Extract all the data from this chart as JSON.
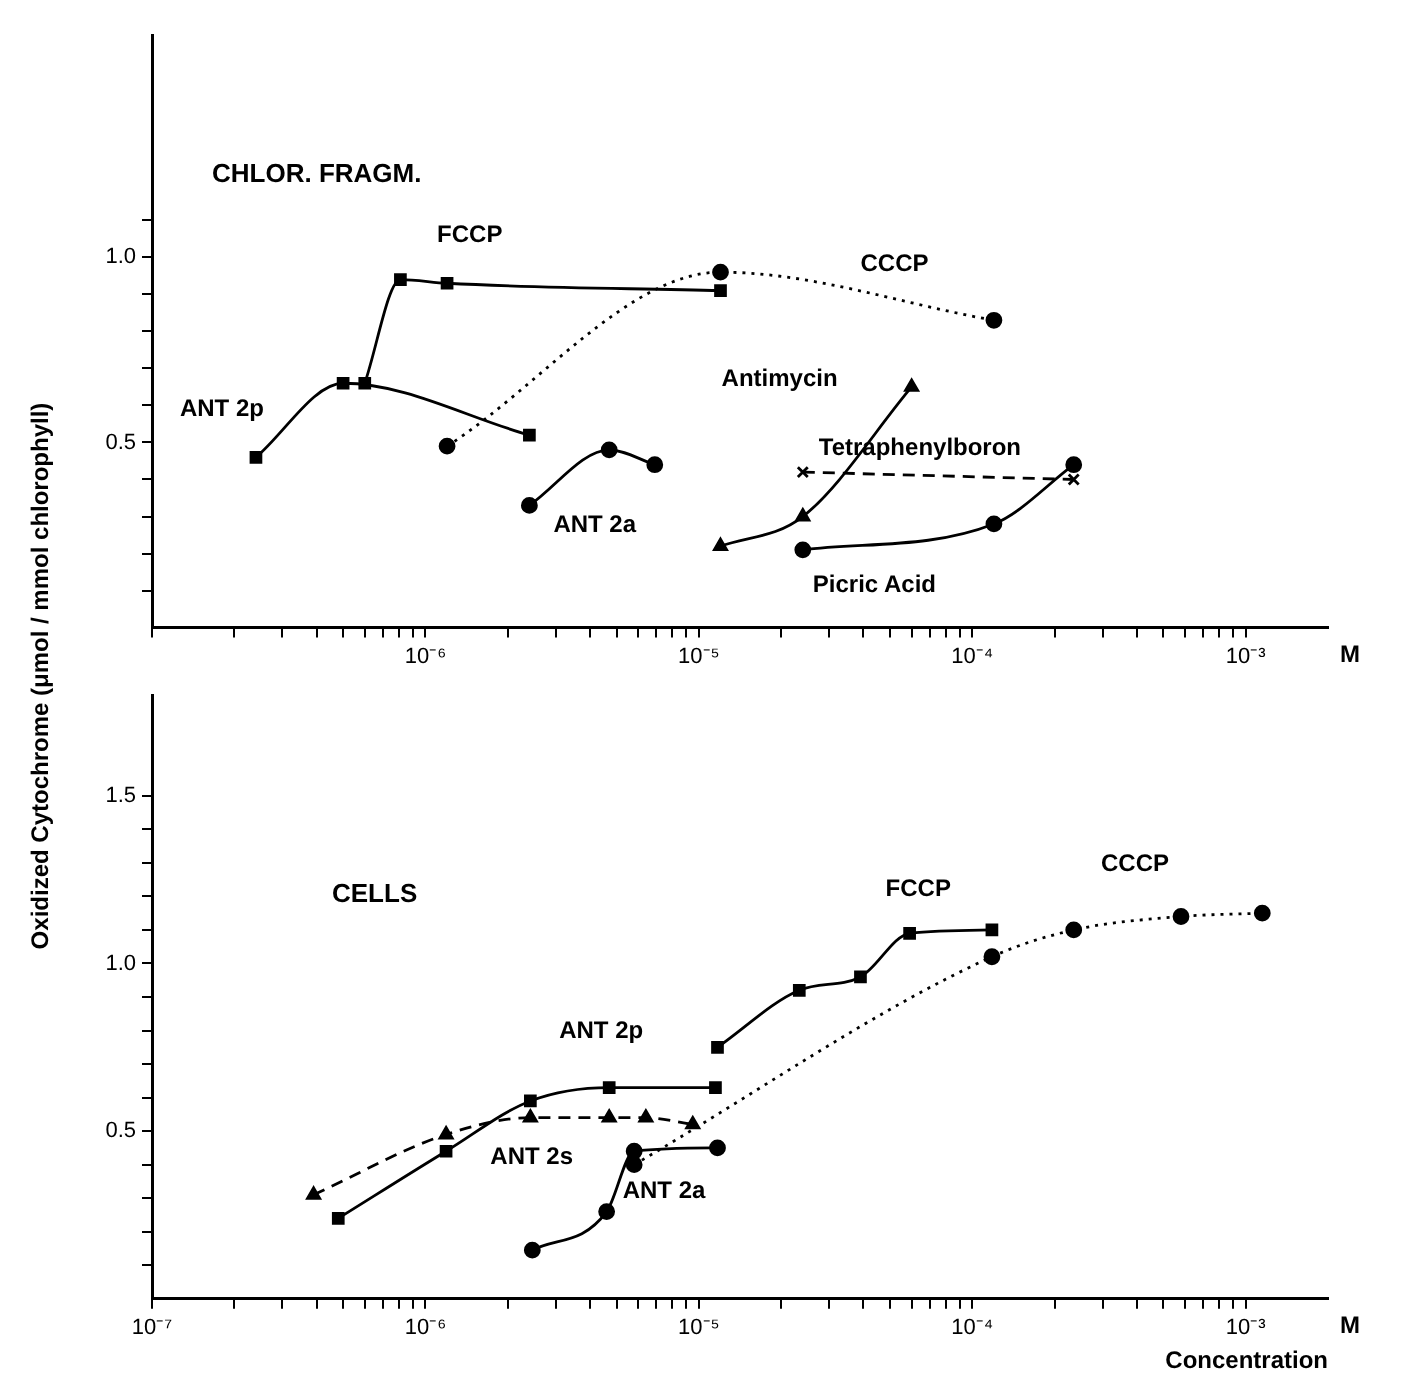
{
  "chart_data": [
    {
      "type": "line",
      "log": "x",
      "grid": false,
      "legend": false,
      "xlim": [
        1e-07,
        0.002
      ],
      "ylim": [
        0,
        1.6
      ],
      "xticks": [
        {
          "value": 1e-07,
          "label": null
        },
        {
          "value": 2e-07,
          "label": null
        },
        {
          "value": 3e-07,
          "label": null
        },
        {
          "value": 4e-07,
          "label": null
        },
        {
          "value": 5e-07,
          "label": null
        },
        {
          "value": 6e-07,
          "label": null
        },
        {
          "value": 7e-07,
          "label": null
        },
        {
          "value": 8e-07,
          "label": null
        },
        {
          "value": 9e-07,
          "label": null
        },
        {
          "value": 1e-06,
          "label": "10⁻⁶"
        },
        {
          "value": 2e-06,
          "label": null
        },
        {
          "value": 3e-06,
          "label": null
        },
        {
          "value": 4e-06,
          "label": null
        },
        {
          "value": 5e-06,
          "label": null
        },
        {
          "value": 6e-06,
          "label": null
        },
        {
          "value": 7e-06,
          "label": null
        },
        {
          "value": 8e-06,
          "label": null
        },
        {
          "value": 9e-06,
          "label": null
        },
        {
          "value": 1e-05,
          "label": "10⁻⁵"
        },
        {
          "value": 2e-05,
          "label": null
        },
        {
          "value": 3e-05,
          "label": null
        },
        {
          "value": 4e-05,
          "label": null
        },
        {
          "value": 5e-05,
          "label": null
        },
        {
          "value": 6e-05,
          "label": null
        },
        {
          "value": 7e-05,
          "label": null
        },
        {
          "value": 8e-05,
          "label": null
        },
        {
          "value": 9e-05,
          "label": null
        },
        {
          "value": 0.0001,
          "label": "10⁻⁴"
        },
        {
          "value": 0.0002,
          "label": null
        },
        {
          "value": 0.0003,
          "label": null
        },
        {
          "value": 0.0004,
          "label": null
        },
        {
          "value": 0.0005,
          "label": null
        },
        {
          "value": 0.0006,
          "label": null
        },
        {
          "value": 0.0007,
          "label": null
        },
        {
          "value": 0.0008,
          "label": null
        },
        {
          "value": 0.0009,
          "label": null
        },
        {
          "value": 0.001,
          "label": "10⁻³"
        }
      ],
      "yticks": [
        {
          "value": 0.1,
          "label": null
        },
        {
          "value": 0.2,
          "label": null
        },
        {
          "value": 0.3,
          "label": null
        },
        {
          "value": 0.4,
          "label": null
        },
        {
          "value": 0.5,
          "label": "0.5"
        },
        {
          "value": 0.6,
          "label": null
        },
        {
          "value": 0.7,
          "label": null
        },
        {
          "value": 0.8,
          "label": null
        },
        {
          "value": 0.9,
          "label": null
        },
        {
          "value": 1,
          "label": "1.0"
        },
        {
          "value": 1.1,
          "label": null
        }
      ],
      "series": [
        {
          "name": "FCCP",
          "color": "#000000",
          "marker": "square",
          "line_style": "solid",
          "x": [
            6e-07,
            8.1e-07,
            1.2e-06,
            1.2e-05
          ],
          "values": [
            0.66,
            0.94,
            0.93,
            0.91
          ]
        },
        {
          "name": "ANT 2p",
          "color": "#000000",
          "marker": "square",
          "line_style": "solid",
          "x": [
            2.4e-07,
            5e-07,
            2.4e-06
          ],
          "values": [
            0.46,
            0.66,
            0.52
          ]
        },
        {
          "name": "CCCP",
          "color": "#000000",
          "marker": "circle",
          "line_style": "dotted",
          "x": [
            1.2e-06,
            1.2e-05,
            0.00012
          ],
          "values": [
            0.49,
            0.96,
            0.83
          ]
        },
        {
          "name": "ANT 2a",
          "color": "#000000",
          "marker": "circle",
          "line_style": "solid",
          "x": [
            2.4e-06,
            4.7e-06,
            6.9e-06
          ],
          "values": [
            0.33,
            0.48,
            0.44
          ]
        },
        {
          "name": "Antimycin",
          "color": "#000000",
          "marker": "triangle",
          "line_style": "solid",
          "x": [
            1.2e-05,
            2.4e-05,
            6e-05
          ],
          "values": [
            0.22,
            0.3,
            0.65
          ]
        },
        {
          "name": "Tetraphenylboron",
          "color": "#000000",
          "marker": "cross",
          "line_style": "dashed",
          "x": [
            2.4e-05,
            0.000235
          ],
          "values": [
            0.42,
            0.4
          ]
        },
        {
          "name": "Picric Acid",
          "color": "#000000",
          "marker": "circle",
          "line_style": "solid",
          "x": [
            2.4e-05,
            0.00012,
            0.000235
          ],
          "values": [
            0.21,
            0.28,
            0.44
          ]
        }
      ],
      "title": "CHLOR. FRAGM.",
      "annotations": [
        "M"
      ]
    },
    {
      "type": "line",
      "log": "x",
      "grid": false,
      "legend": false,
      "xlim": [
        1e-07,
        0.002
      ],
      "ylim": [
        0,
        1.8
      ],
      "xlabel": "Concentration",
      "ylabel": "Oxidized Cytochrome (μmol / mmol chlorophyll)",
      "xticks": [
        {
          "value": 1e-07,
          "label": "10⁻⁷"
        },
        {
          "value": 2e-07,
          "label": null
        },
        {
          "value": 3e-07,
          "label": null
        },
        {
          "value": 4e-07,
          "label": null
        },
        {
          "value": 5e-07,
          "label": null
        },
        {
          "value": 6e-07,
          "label": null
        },
        {
          "value": 7e-07,
          "label": null
        },
        {
          "value": 8e-07,
          "label": null
        },
        {
          "value": 9e-07,
          "label": null
        },
        {
          "value": 1e-06,
          "label": "10⁻⁶"
        },
        {
          "value": 2e-06,
          "label": null
        },
        {
          "value": 3e-06,
          "label": null
        },
        {
          "value": 4e-06,
          "label": null
        },
        {
          "value": 5e-06,
          "label": null
        },
        {
          "value": 6e-06,
          "label": null
        },
        {
          "value": 7e-06,
          "label": null
        },
        {
          "value": 8e-06,
          "label": null
        },
        {
          "value": 9e-06,
          "label": null
        },
        {
          "value": 1e-05,
          "label": "10⁻⁵"
        },
        {
          "value": 2e-05,
          "label": null
        },
        {
          "value": 3e-05,
          "label": null
        },
        {
          "value": 4e-05,
          "label": null
        },
        {
          "value": 5e-05,
          "label": null
        },
        {
          "value": 6e-05,
          "label": null
        },
        {
          "value": 7e-05,
          "label": null
        },
        {
          "value": 8e-05,
          "label": null
        },
        {
          "value": 9e-05,
          "label": null
        },
        {
          "value": 0.0001,
          "label": "10⁻⁴"
        },
        {
          "value": 0.0002,
          "label": null
        },
        {
          "value": 0.0003,
          "label": null
        },
        {
          "value": 0.0004,
          "label": null
        },
        {
          "value": 0.0005,
          "label": null
        },
        {
          "value": 0.0006,
          "label": null
        },
        {
          "value": 0.0007,
          "label": null
        },
        {
          "value": 0.0008,
          "label": null
        },
        {
          "value": 0.0009,
          "label": null
        },
        {
          "value": 0.001,
          "label": "10⁻³"
        }
      ],
      "yticks": [
        {
          "value": 0.1,
          "label": null
        },
        {
          "value": 0.2,
          "label": null
        },
        {
          "value": 0.3,
          "label": null
        },
        {
          "value": 0.4,
          "label": null
        },
        {
          "value": 0.5,
          "label": "0.5"
        },
        {
          "value": 0.6,
          "label": null
        },
        {
          "value": 0.7,
          "label": null
        },
        {
          "value": 0.8,
          "label": null
        },
        {
          "value": 0.9,
          "label": null
        },
        {
          "value": 1,
          "label": "1.0"
        },
        {
          "value": 1.1,
          "label": null
        },
        {
          "value": 1.2,
          "label": null
        },
        {
          "value": 1.3,
          "label": null
        },
        {
          "value": 1.4,
          "label": null
        },
        {
          "value": 1.5,
          "label": "1.5"
        }
      ],
      "series": [
        {
          "name": "FCCP",
          "color": "#000000",
          "marker": "square",
          "line_style": "solid",
          "x": [
            1.17e-05,
            2.33e-05,
            3.9e-05,
            5.9e-05,
            0.000118
          ],
          "values": [
            0.75,
            0.92,
            0.96,
            1.09,
            1.1
          ]
        },
        {
          "name": "ANT 2p",
          "color": "#000000",
          "marker": "square",
          "line_style": "solid",
          "x": [
            4.8e-07,
            1.19e-06,
            2.42e-06,
            4.7e-06,
            1.15e-05
          ],
          "values": [
            0.24,
            0.44,
            0.59,
            0.63,
            0.63
          ]
        },
        {
          "name": "ANT 2s",
          "color": "#000000",
          "marker": "triangle",
          "line_style": "dashed",
          "x": [
            3.9e-07,
            1.19e-06,
            2.42e-06,
            4.7e-06,
            6.4e-06,
            9.5e-06
          ],
          "values": [
            0.31,
            0.49,
            0.54,
            0.54,
            0.54,
            0.52
          ]
        },
        {
          "name": "ANT 2a",
          "color": "#000000",
          "marker": "circle",
          "line_style": "solid",
          "x": [
            2.46e-06,
            4.6e-06,
            5.8e-06,
            1.17e-05
          ],
          "values": [
            0.145,
            0.26,
            0.44,
            0.45
          ]
        },
        {
          "name": "CCCP",
          "color": "#000000",
          "marker": "circle",
          "line_style": "dotted",
          "x": [
            5.8e-06,
            0.000118,
            0.000235,
            0.00058,
            0.00115
          ],
          "values": [
            0.4,
            1.02,
            1.1,
            1.14,
            1.15
          ]
        }
      ],
      "title": "CELLS",
      "annotations": [
        "M"
      ]
    }
  ]
}
